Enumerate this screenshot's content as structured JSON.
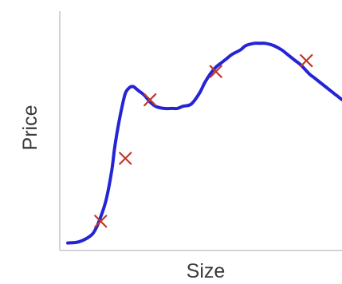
{
  "chart_data": {
    "type": "line",
    "title": "",
    "xlabel": "Size",
    "ylabel": "Price",
    "xlim": [
      0,
      100
    ],
    "ylim": [
      0,
      100
    ],
    "grid": false,
    "legend": "none",
    "colors": {
      "curve": "#2424d6",
      "markers": "#c0392b",
      "axes": "#d4d4d4",
      "labels": "#3a3a3a"
    },
    "series": [
      {
        "kind": "fitted-curve",
        "x": [
          0,
          4,
          8,
          10,
          12,
          14,
          16,
          17,
          18,
          19,
          20,
          21,
          22,
          23,
          24,
          25,
          26,
          28,
          30,
          32,
          35,
          38,
          40,
          42,
          45,
          48,
          50,
          52,
          54,
          56,
          58,
          60,
          63,
          65,
          68,
          70,
          72,
          75,
          78,
          80,
          83,
          85,
          88,
          90,
          93,
          96,
          98,
          100
        ],
        "y": [
          2,
          2.5,
          5,
          8,
          14,
          22,
          35,
          45,
          53,
          60,
          66,
          71,
          73,
          74,
          74,
          73,
          72,
          70,
          67,
          65,
          64,
          64,
          64,
          65,
          66,
          71,
          76,
          80,
          83,
          85,
          87,
          89,
          91,
          93,
          94,
          94,
          94,
          93,
          91,
          89,
          86,
          84,
          80,
          78,
          75,
          72,
          70,
          68
        ]
      },
      {
        "kind": "data-points",
        "marker": "x",
        "x": [
          12,
          21,
          30,
          54,
          87
        ],
        "y": [
          12,
          41,
          68,
          81,
          86
        ]
      }
    ]
  }
}
